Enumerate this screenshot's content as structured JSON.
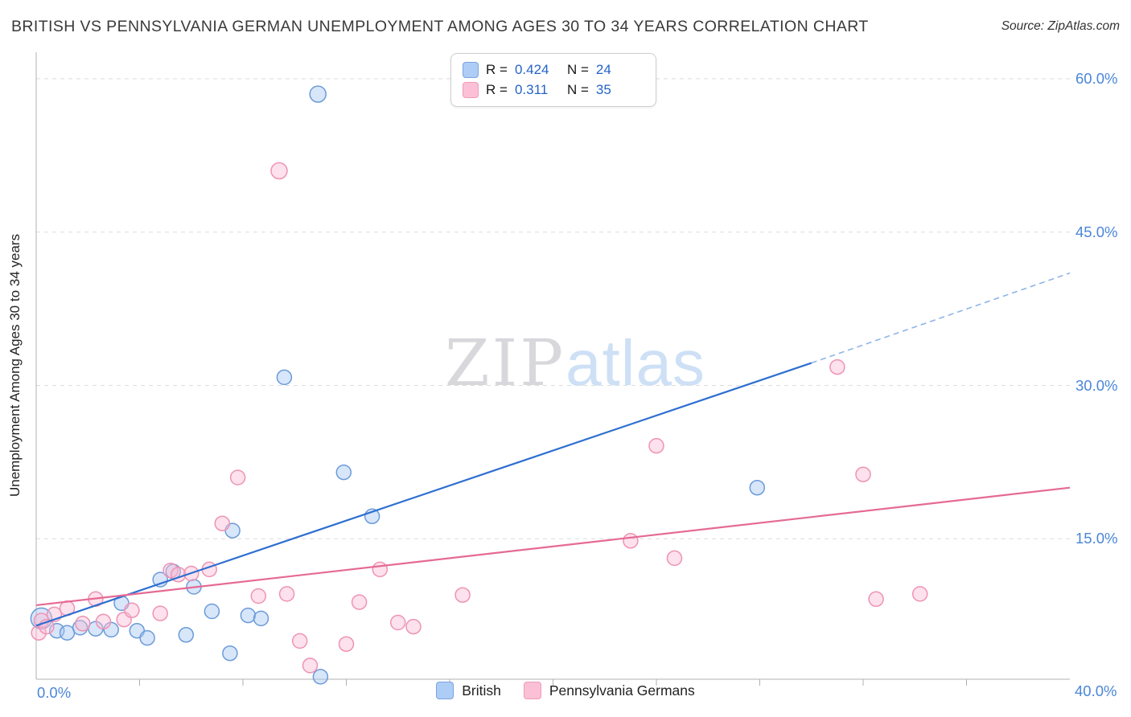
{
  "header": {
    "title": "BRITISH VS PENNSYLVANIA GERMAN UNEMPLOYMENT AMONG AGES 30 TO 34 YEARS CORRELATION CHART",
    "source": "Source: ZipAtlas.com"
  },
  "watermark": {
    "part1": "ZIP",
    "part2": "atlas"
  },
  "axes": {
    "y_label": "Unemployment Among Ages 30 to 34 years",
    "y_ticks": [
      "60.0%",
      "45.0%",
      "30.0%",
      "15.0%"
    ],
    "x_min_label": "0.0%",
    "x_max_label": "40.0%"
  },
  "legend_box": {
    "rows": [
      {
        "series": "British",
        "r_label": "R =",
        "r_value": "0.424",
        "n_label": "N =",
        "n_value": "24"
      },
      {
        "series": "Pennsylvania Germans",
        "r_label": "R =",
        "r_value": "0.311",
        "n_label": "N =",
        "n_value": "35"
      }
    ]
  },
  "bottom_legend": {
    "items": [
      {
        "label": "British"
      },
      {
        "label": "Pennsylvania Germans"
      }
    ]
  },
  "chart_data": {
    "type": "scatter",
    "title": "BRITISH VS PENNSYLVANIA GERMAN UNEMPLOYMENT AMONG AGES 30 TO 34 YEARS CORRELATION CHART",
    "x_unit": "percent",
    "y_unit": "percent",
    "xlim": [
      0,
      40
    ],
    "ylim": [
      0,
      62.6
    ],
    "gridlines_y": [
      15,
      30,
      45,
      60
    ],
    "x_ticks": [
      4,
      8,
      12,
      16,
      20,
      24,
      28,
      32,
      36
    ],
    "legend_position": "top-center",
    "series": [
      {
        "name": "British",
        "r": 0.424,
        "n": 24,
        "fill": "#a8c8f5",
        "stroke": "#6b9bd8",
        "points": [
          [
            0.2,
            7.2,
            13
          ],
          [
            0.8,
            6.0
          ],
          [
            1.2,
            5.8
          ],
          [
            1.7,
            6.3
          ],
          [
            2.3,
            6.2
          ],
          [
            2.9,
            6.1
          ],
          [
            3.3,
            8.7
          ],
          [
            3.9,
            6.0
          ],
          [
            4.3,
            5.3
          ],
          [
            4.8,
            11.0
          ],
          [
            5.3,
            11.8
          ],
          [
            5.8,
            5.6
          ],
          [
            6.1,
            10.3
          ],
          [
            6.8,
            7.9
          ],
          [
            7.5,
            3.8
          ],
          [
            7.6,
            15.8
          ],
          [
            8.2,
            7.5
          ],
          [
            8.7,
            7.2
          ],
          [
            9.6,
            30.8
          ],
          [
            10.9,
            58.5,
            10
          ],
          [
            11.0,
            1.5
          ],
          [
            11.9,
            21.5
          ],
          [
            13.0,
            17.2
          ],
          [
            27.9,
            20.0
          ]
        ]
      },
      {
        "name": "Pennsylvania Germans",
        "r": 0.311,
        "n": 35,
        "fill": "#fbbdd4",
        "stroke": "#ee93b4",
        "points": [
          [
            0.1,
            5.8
          ],
          [
            0.2,
            7.0
          ],
          [
            0.4,
            6.4
          ],
          [
            0.7,
            7.6
          ],
          [
            1.2,
            8.2
          ],
          [
            1.8,
            6.7
          ],
          [
            2.3,
            9.1
          ],
          [
            2.6,
            6.9
          ],
          [
            3.4,
            7.1
          ],
          [
            3.7,
            8.0
          ],
          [
            4.8,
            7.7
          ],
          [
            5.2,
            11.9
          ],
          [
            5.5,
            11.5
          ],
          [
            6.0,
            11.6
          ],
          [
            6.7,
            12.0
          ],
          [
            7.2,
            16.5
          ],
          [
            7.8,
            21.0
          ],
          [
            8.6,
            9.4
          ],
          [
            9.4,
            51.0,
            10
          ],
          [
            9.7,
            9.6
          ],
          [
            10.2,
            5.0
          ],
          [
            10.6,
            2.6
          ],
          [
            12.0,
            4.7
          ],
          [
            12.5,
            8.8
          ],
          [
            13.3,
            12.0
          ],
          [
            14.0,
            6.8
          ],
          [
            14.6,
            6.4
          ],
          [
            16.5,
            9.5
          ],
          [
            23.0,
            14.8
          ],
          [
            24.0,
            24.1
          ],
          [
            24.7,
            13.1
          ],
          [
            31.0,
            31.8
          ],
          [
            32.0,
            21.3
          ],
          [
            32.5,
            9.1
          ],
          [
            34.2,
            9.6
          ]
        ]
      }
    ],
    "trend_lines": [
      {
        "series": "British",
        "color": "#2e6fd0",
        "x1": 0,
        "y1": 6.5,
        "x2": 30,
        "y2": 32.2,
        "dash_to": {
          "x": 40,
          "y": 41.0
        },
        "dash_color": "#8fb4e8"
      },
      {
        "series": "Pennsylvania Germans",
        "color": "#e56a93",
        "x1": 0,
        "y1": 8.5,
        "x2": 40,
        "y2": 20.0
      }
    ]
  }
}
